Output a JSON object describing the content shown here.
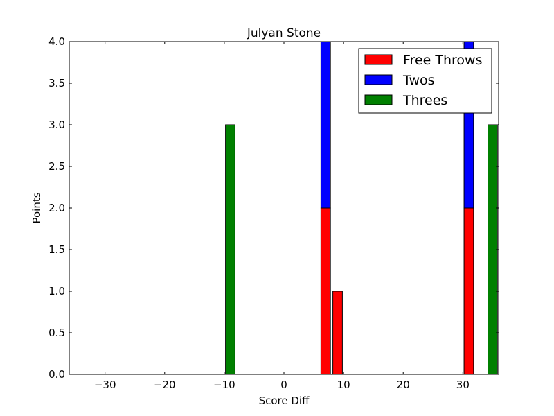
{
  "chart_data": {
    "type": "bar",
    "stacked": true,
    "title": "Julyan Stone",
    "xlabel": "Score Diff",
    "ylabel": "Points",
    "xlim": [
      -36,
      36
    ],
    "ylim": [
      0,
      4
    ],
    "bar_width": 1.6,
    "xticks": [
      -30,
      -20,
      -10,
      0,
      10,
      20,
      30
    ],
    "xtick_labels": [
      "−30",
      "−20",
      "−10",
      "0",
      "10",
      "20",
      "30"
    ],
    "yticks": [
      0,
      0.5,
      1,
      1.5,
      2,
      2.5,
      3,
      3.5,
      4
    ],
    "ytick_labels": [
      "0.0",
      "0.5",
      "1.0",
      "1.5",
      "2.0",
      "2.5",
      "3.0",
      "3.5",
      "4.0"
    ],
    "x": [
      -35,
      -34,
      -33,
      -32,
      -31,
      -30,
      -29,
      -28,
      -27,
      -26,
      -25,
      -24,
      -23,
      -22,
      -21,
      -20,
      -19,
      -18,
      -17,
      -16,
      -15,
      -14,
      -13,
      -12,
      -11,
      -10,
      -9,
      -8,
      -7,
      -6,
      -5,
      -4,
      -3,
      -2,
      -1,
      0,
      1,
      2,
      3,
      4,
      5,
      6,
      7,
      8,
      9,
      10,
      11,
      12,
      13,
      14,
      15,
      16,
      17,
      18,
      19,
      20,
      21,
      22,
      23,
      24,
      25,
      26,
      27,
      28,
      29,
      30,
      31,
      32,
      33,
      34,
      35
    ],
    "legend_position": "top-right",
    "series": [
      {
        "name": "Free Throws",
        "color": "#ff0000",
        "values": [
          0,
          0,
          0,
          0,
          0,
          0,
          0,
          0,
          0,
          0,
          0,
          0,
          0,
          0,
          0,
          0,
          0,
          0,
          0,
          0,
          0,
          0,
          0,
          0,
          0,
          0,
          0,
          0,
          0,
          0,
          0,
          0,
          0,
          0,
          0,
          0,
          0,
          0,
          0,
          0,
          0,
          0,
          2,
          0,
          1,
          0,
          0,
          0,
          0,
          0,
          0,
          0,
          0,
          0,
          0,
          0,
          0,
          0,
          0,
          0,
          0,
          0,
          0,
          0,
          0,
          0,
          2,
          0,
          0,
          0,
          0
        ]
      },
      {
        "name": "Twos",
        "color": "#0000ff",
        "values": [
          0,
          0,
          0,
          0,
          0,
          0,
          0,
          0,
          0,
          0,
          0,
          0,
          0,
          0,
          0,
          0,
          0,
          0,
          0,
          0,
          0,
          0,
          0,
          0,
          0,
          0,
          0,
          0,
          0,
          0,
          0,
          0,
          0,
          0,
          0,
          0,
          0,
          0,
          0,
          0,
          0,
          0,
          2,
          0,
          0,
          0,
          0,
          0,
          0,
          0,
          0,
          0,
          0,
          0,
          0,
          0,
          0,
          0,
          0,
          0,
          0,
          0,
          0,
          0,
          0,
          0,
          2,
          0,
          0,
          0,
          0
        ]
      },
      {
        "name": "Threes",
        "color": "#008000",
        "values": [
          0,
          0,
          0,
          0,
          0,
          0,
          0,
          0,
          0,
          0,
          0,
          0,
          0,
          0,
          0,
          0,
          0,
          0,
          0,
          0,
          0,
          0,
          0,
          0,
          0,
          0,
          3,
          0,
          0,
          0,
          0,
          0,
          0,
          0,
          0,
          0,
          0,
          0,
          0,
          0,
          0,
          0,
          0,
          0,
          0,
          0,
          0,
          0,
          0,
          0,
          0,
          0,
          0,
          0,
          0,
          0,
          0,
          0,
          0,
          0,
          0,
          0,
          0,
          0,
          0,
          0,
          0,
          0,
          0,
          0,
          3
        ]
      }
    ]
  }
}
